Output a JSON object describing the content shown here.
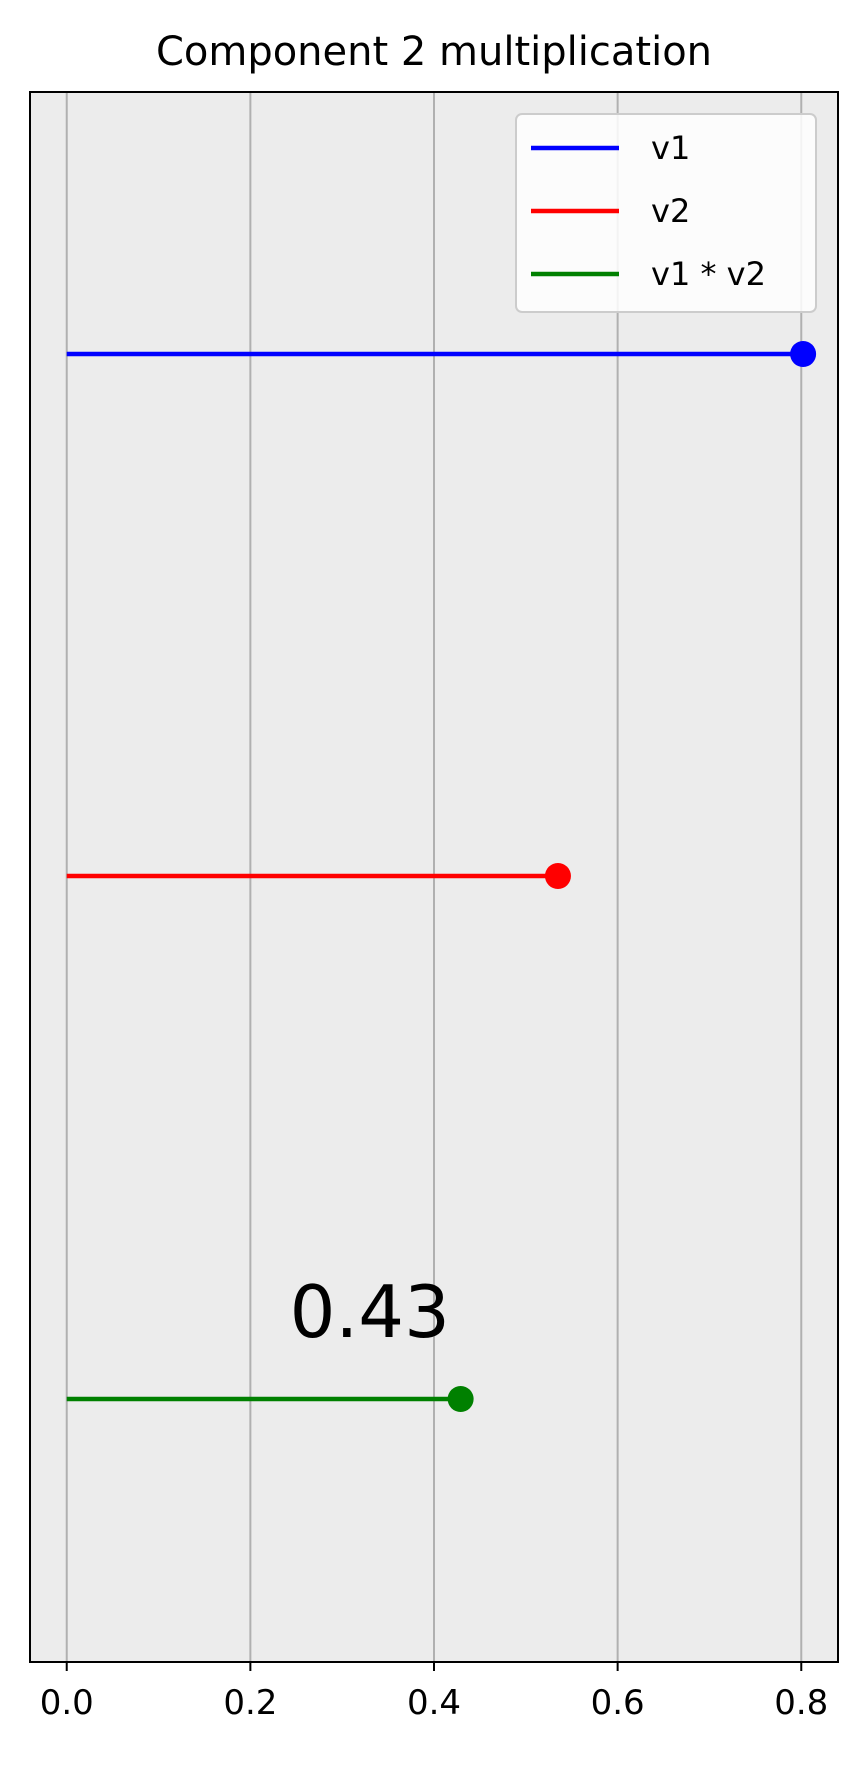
{
  "chart_data": {
    "type": "line",
    "title": "Component 2 multiplication",
    "xlabel": "",
    "ylabel": "",
    "xlim": [
      -0.04,
      0.84
    ],
    "xticks": [
      0.0,
      0.2,
      0.4,
      0.6,
      0.8
    ],
    "xtick_labels": [
      "0.0",
      "0.2",
      "0.4",
      "0.6",
      "0.8"
    ],
    "grid": "x",
    "background": "#ececec",
    "legend_position": "top-right",
    "series": [
      {
        "name": "v1",
        "color": "#0000ff",
        "x": [
          0,
          0.802
        ],
        "marker": "end"
      },
      {
        "name": "v2",
        "color": "#ff0000",
        "x": [
          0,
          0.535
        ],
        "marker": "end"
      },
      {
        "name": "v1 * v2",
        "color": "#008000",
        "x": [
          0,
          0.429
        ],
        "marker": "end"
      }
    ],
    "annotations": [
      {
        "text": "0.43",
        "series": "v1 * v2"
      }
    ]
  }
}
